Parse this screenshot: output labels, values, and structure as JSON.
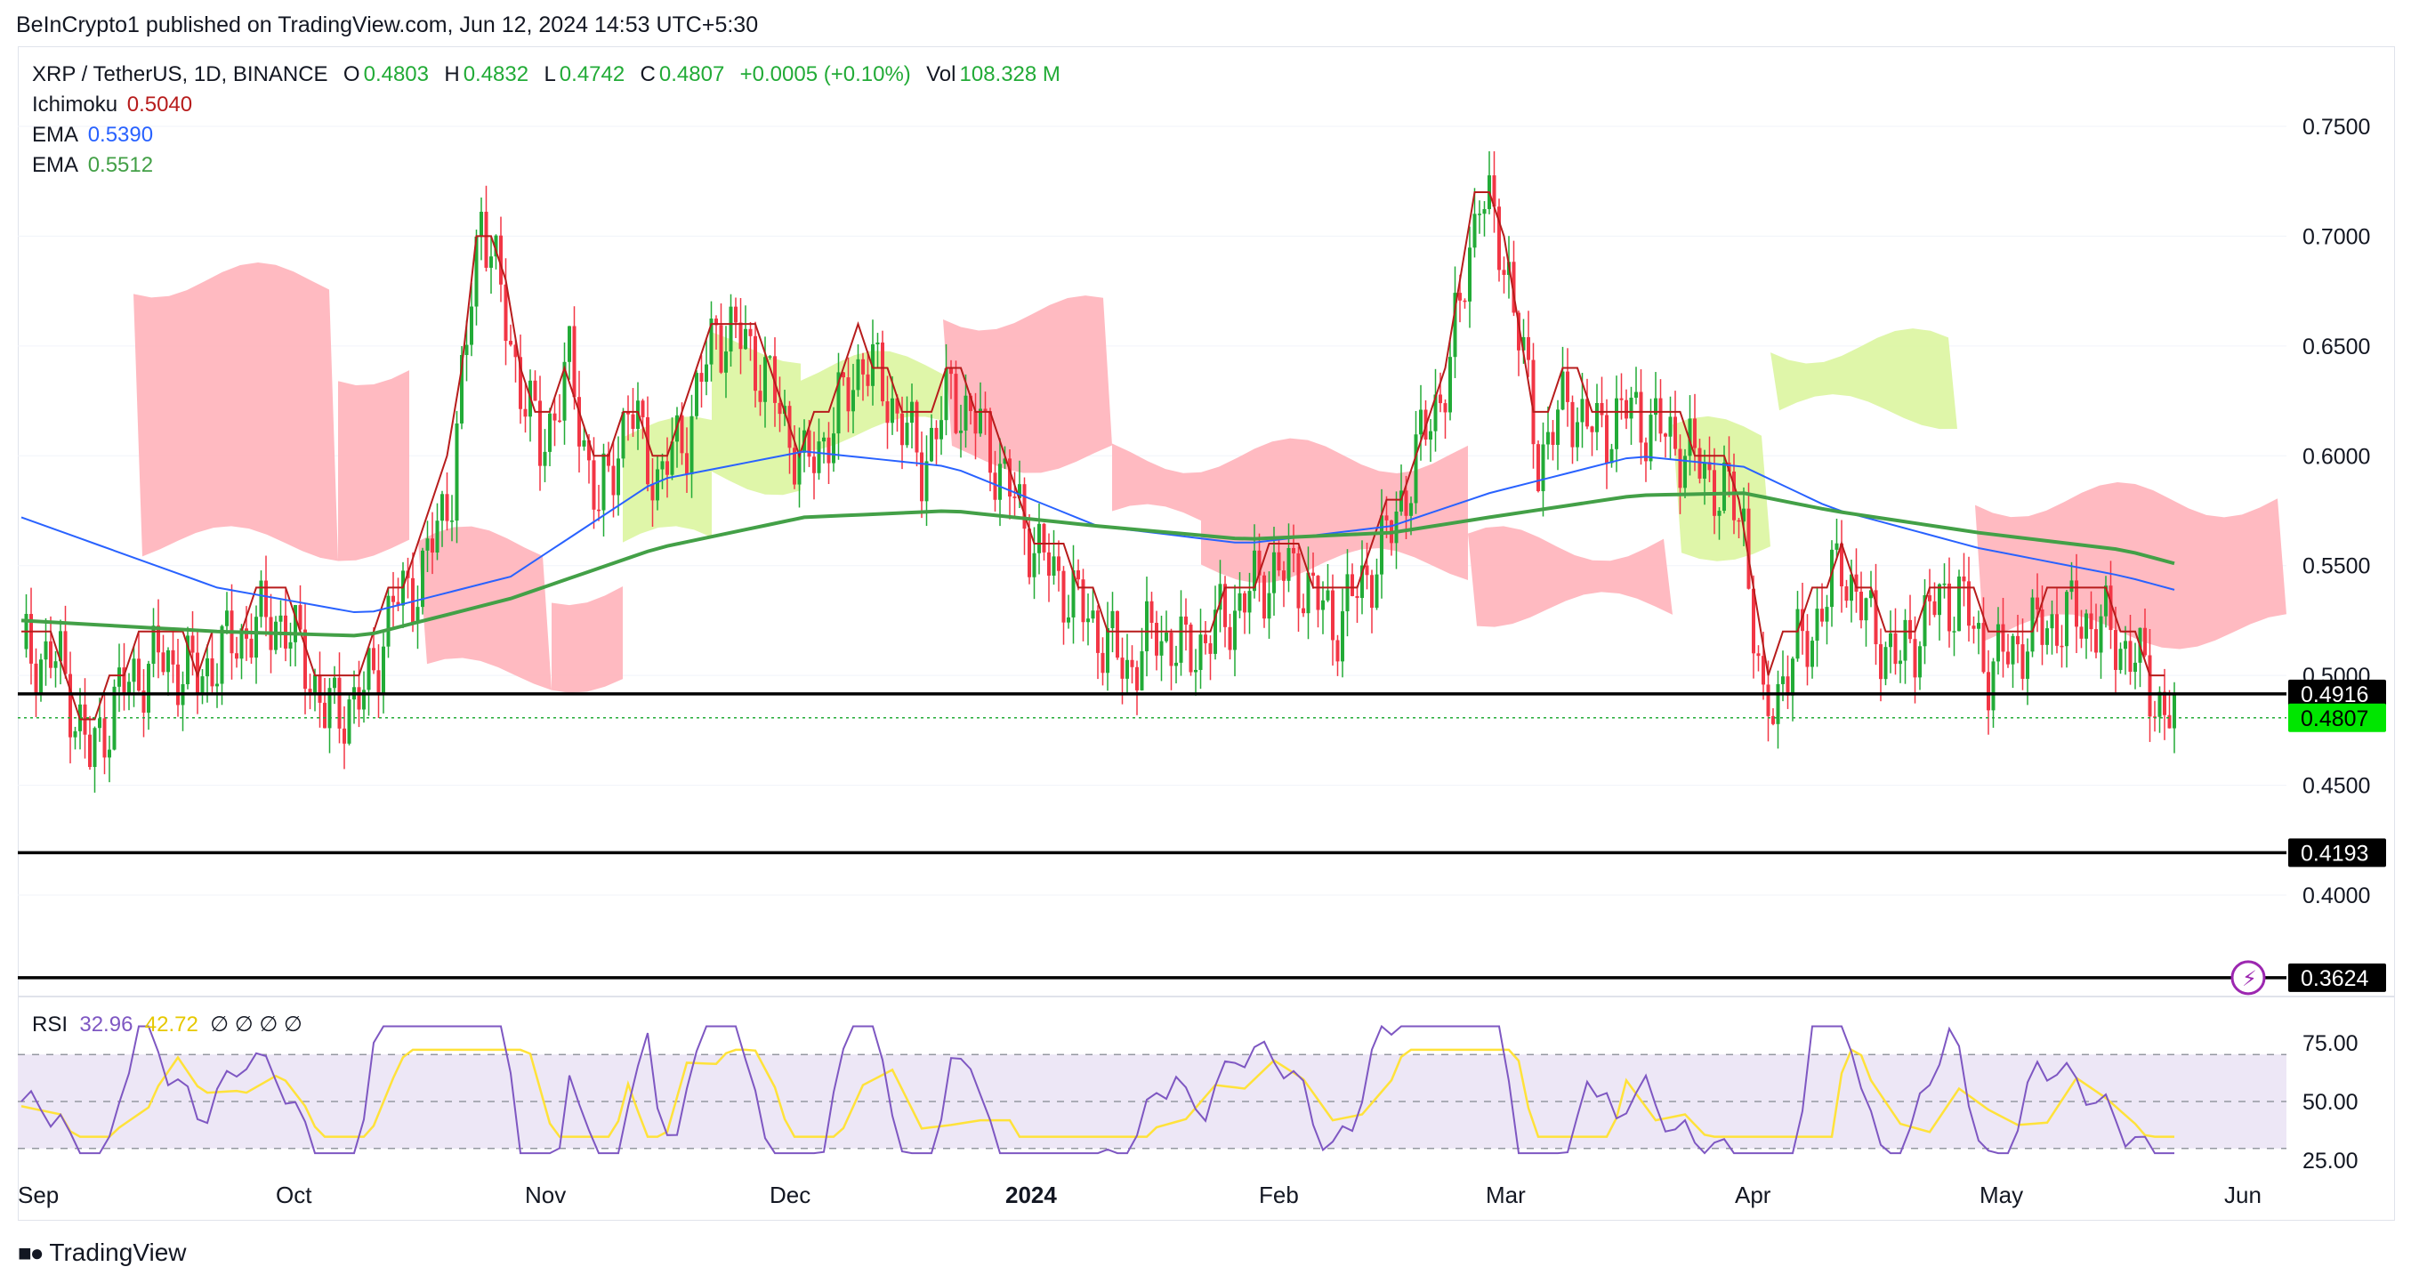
{
  "publisher": "BeInCrypto1 published on TradingView.com, Jun 12, 2024 14:53 UTC+5:30",
  "legend": {
    "symbol": "XRP / TetherUS, 1D, BINANCE",
    "o_label": "O",
    "open": "0.4803",
    "h_label": "H",
    "high": "0.4832",
    "l_label": "L",
    "low": "0.4742",
    "c_label": "C",
    "close": "0.4807",
    "change": "+0.0005 (+0.10%)",
    "vol_label": "Vol",
    "volume": "108.328 M",
    "ichimoku_label": "Ichimoku",
    "ichimoku_value": "0.5040",
    "ema1_label": "EMA",
    "ema1_value": "0.5390",
    "ema2_label": "EMA",
    "ema2_value": "0.5512"
  },
  "rsi_legend": {
    "label": "RSI",
    "rsi_value": "32.96",
    "ma_value": "42.72",
    "empty_slots": [
      "∅",
      "∅",
      "∅",
      "∅"
    ]
  },
  "colors": {
    "up": "#22ab37",
    "down": "#f23645",
    "green_text": "#22ab37",
    "ichimoku_text": "#b71c1c",
    "ema1": "#2962ff",
    "ema2": "#43a047",
    "base_line": "#b71c1c",
    "cloud_red": "#ffb3ba",
    "cloud_green": "#dcf5a0",
    "rsi_line": "#7e57c2",
    "rsi_ma": "#ffe23a",
    "rsi_band": "#ede7f6",
    "price_tag_green": "#00e600",
    "level_line": "#000000",
    "tick_text": "#131722"
  },
  "footer": {
    "brand": "TradingView",
    "logo_icon": "tradingview-logo-icon",
    "alert_icon": "lightning-alert-icon"
  },
  "chart_data": {
    "type": "candlestick",
    "y_ticks": [
      "0.7500",
      "0.7000",
      "0.6500",
      "0.6000",
      "0.5500",
      "0.5000",
      "0.4500",
      "0.4000"
    ],
    "x_ticks": [
      "Sep",
      "Oct",
      "Nov",
      "Dec",
      "2024",
      "Feb",
      "Mar",
      "Apr",
      "May",
      "Jun"
    ],
    "y_range": [
      0.3624,
      0.7612
    ],
    "horizontal_levels": [
      {
        "value": 0.4916,
        "label": "0.4916"
      },
      {
        "value": 0.4193,
        "label": "0.4193"
      },
      {
        "value": 0.3624,
        "label": "0.3624"
      }
    ],
    "last_price": {
      "value": 0.4807,
      "label": "0.4807"
    },
    "rsi": {
      "ticks": [
        "75.00",
        "50.00",
        "25.00"
      ],
      "upper_band": 70,
      "middle": 50,
      "lower_band": 30
    },
    "price_path": [
      [
        0,
        0.512
      ],
      [
        8,
        0.505
      ],
      [
        14,
        0.462
      ],
      [
        20,
        0.492
      ],
      [
        28,
        0.508
      ],
      [
        36,
        0.499
      ],
      [
        44,
        0.517
      ],
      [
        52,
        0.527
      ],
      [
        58,
        0.508
      ],
      [
        62,
        0.482
      ],
      [
        70,
        0.49
      ],
      [
        76,
        0.532
      ],
      [
        82,
        0.546
      ],
      [
        88,
        0.588
      ],
      [
        94,
        0.714
      ],
      [
        100,
        0.65
      ],
      [
        106,
        0.603
      ],
      [
        112,
        0.64
      ],
      [
        118,
        0.574
      ],
      [
        124,
        0.622
      ],
      [
        130,
        0.589
      ],
      [
        136,
        0.611
      ],
      [
        142,
        0.658
      ],
      [
        148,
        0.652
      ],
      [
        154,
        0.627
      ],
      [
        160,
        0.593
      ],
      [
        166,
        0.615
      ],
      [
        172,
        0.645
      ],
      [
        178,
        0.624
      ],
      [
        184,
        0.596
      ],
      [
        190,
        0.629
      ],
      [
        196,
        0.612
      ],
      [
        202,
        0.584
      ],
      [
        208,
        0.555
      ],
      [
        214,
        0.538
      ],
      [
        220,
        0.52
      ],
      [
        226,
        0.503
      ],
      [
        232,
        0.52
      ],
      [
        238,
        0.509
      ],
      [
        244,
        0.521
      ],
      [
        250,
        0.535
      ],
      [
        256,
        0.548
      ],
      [
        262,
        0.544
      ],
      [
        268,
        0.523
      ],
      [
        274,
        0.541
      ],
      [
        280,
        0.566
      ],
      [
        286,
        0.605
      ],
      [
        292,
        0.641
      ],
      [
        298,
        0.722
      ],
      [
        304,
        0.684
      ],
      [
        310,
        0.599
      ],
      [
        316,
        0.625
      ],
      [
        322,
        0.61
      ],
      [
        328,
        0.621
      ],
      [
        334,
        0.613
      ],
      [
        340,
        0.603
      ],
      [
        346,
        0.588
      ],
      [
        352,
        0.571
      ],
      [
        356,
        0.477
      ],
      [
        360,
        0.5
      ],
      [
        366,
        0.521
      ],
      [
        372,
        0.552
      ],
      [
        378,
        0.522
      ],
      [
        384,
        0.506
      ],
      [
        390,
        0.53
      ],
      [
        396,
        0.537
      ],
      [
        402,
        0.503
      ],
      [
        408,
        0.514
      ],
      [
        414,
        0.523
      ],
      [
        420,
        0.527
      ],
      [
        426,
        0.521
      ],
      [
        432,
        0.508
      ],
      [
        438,
        0.483
      ],
      [
        440,
        0.4807
      ]
    ],
    "ema_fast": [
      [
        0,
        0.572
      ],
      [
        40,
        0.54
      ],
      [
        70,
        0.528
      ],
      [
        100,
        0.545
      ],
      [
        130,
        0.589
      ],
      [
        160,
        0.602
      ],
      [
        190,
        0.595
      ],
      [
        220,
        0.568
      ],
      [
        250,
        0.56
      ],
      [
        280,
        0.568
      ],
      [
        300,
        0.583
      ],
      [
        330,
        0.6
      ],
      [
        352,
        0.595
      ],
      [
        370,
        0.576
      ],
      [
        400,
        0.558
      ],
      [
        430,
        0.545
      ],
      [
        440,
        0.539
      ]
    ],
    "ema_slow": [
      [
        0,
        0.525
      ],
      [
        40,
        0.52
      ],
      [
        70,
        0.518
      ],
      [
        100,
        0.535
      ],
      [
        130,
        0.558
      ],
      [
        160,
        0.572
      ],
      [
        190,
        0.575
      ],
      [
        220,
        0.568
      ],
      [
        250,
        0.562
      ],
      [
        280,
        0.565
      ],
      [
        300,
        0.572
      ],
      [
        330,
        0.582
      ],
      [
        352,
        0.583
      ],
      [
        370,
        0.575
      ],
      [
        400,
        0.565
      ],
      [
        430,
        0.557
      ],
      [
        440,
        0.551
      ]
    ]
  }
}
